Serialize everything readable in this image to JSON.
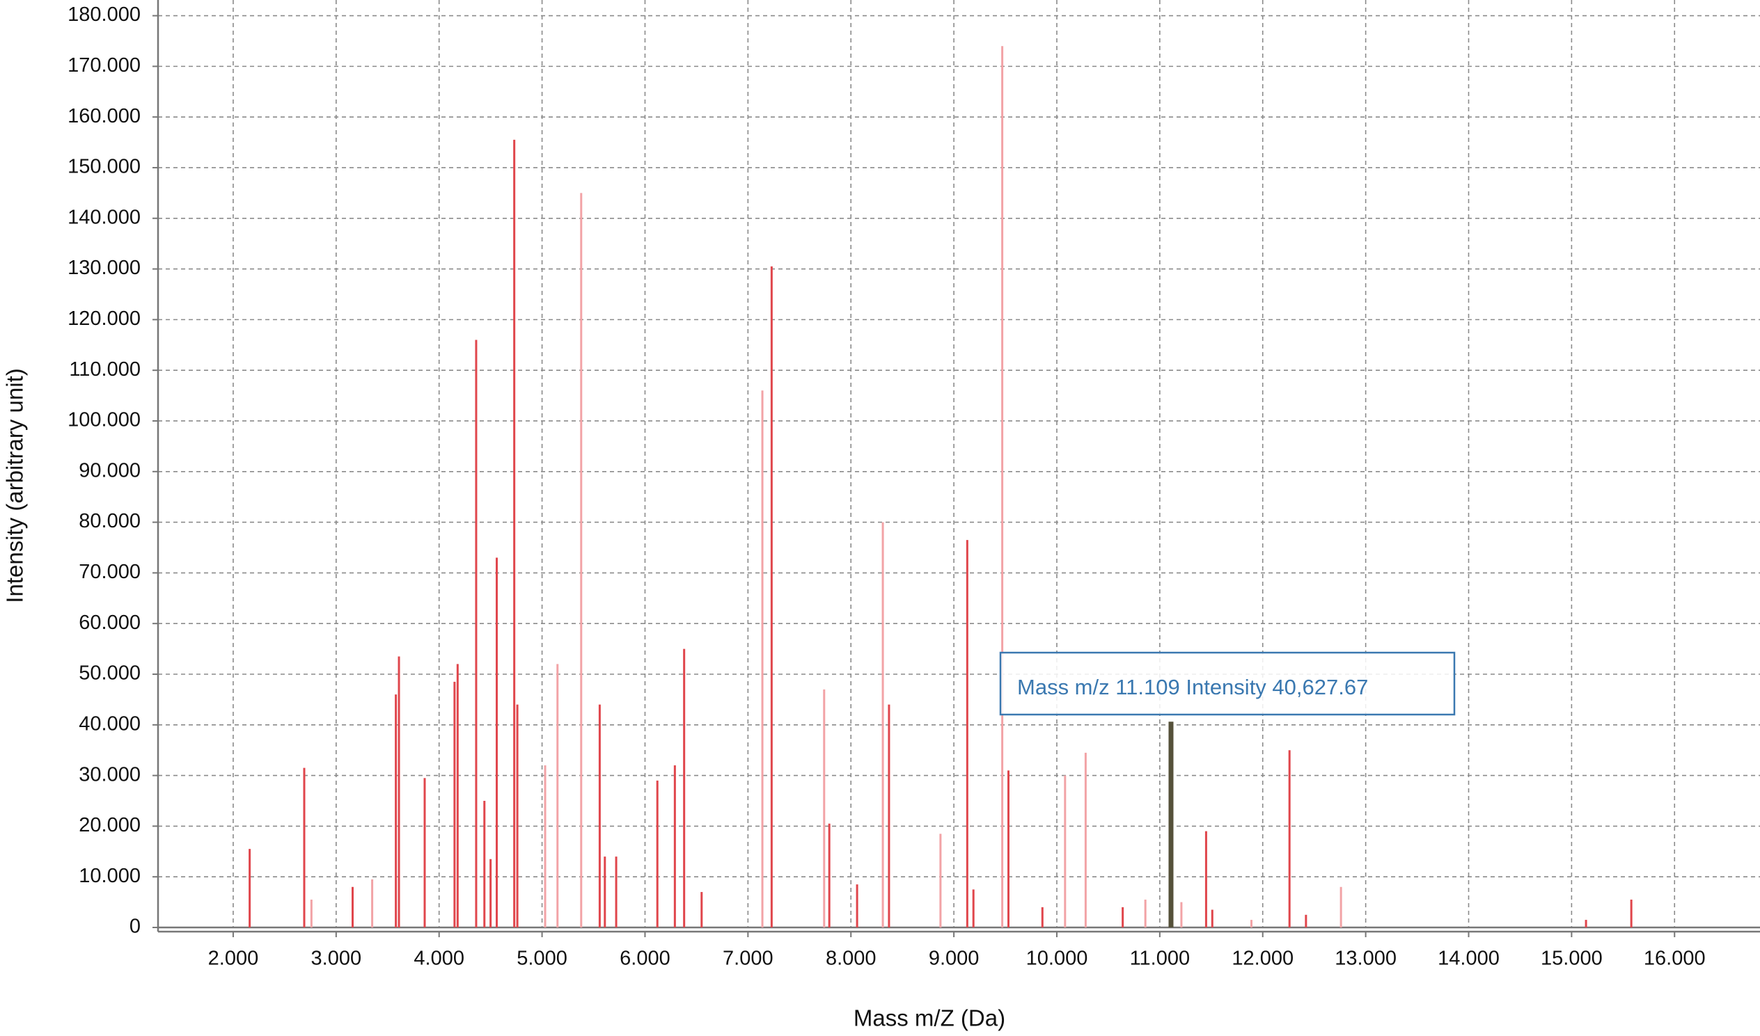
{
  "chart_data": {
    "type": "stem",
    "xlabel": "Mass m/Z (Da)",
    "ylabel": "Intensity (arbitrary unit)",
    "annotation": "Mass m/z 11.109 Intensity 40,627.67",
    "xlim": [
      1270,
      16830
    ],
    "ylim": [
      0,
      183100
    ],
    "grid": true,
    "xticks": [
      {
        "value": 2000,
        "label": "2.000"
      },
      {
        "value": 3000,
        "label": "3.000"
      },
      {
        "value": 4000,
        "label": "4.000"
      },
      {
        "value": 5000,
        "label": "5.000"
      },
      {
        "value": 6000,
        "label": "6.000"
      },
      {
        "value": 7000,
        "label": "7.000"
      },
      {
        "value": 8000,
        "label": "8.000"
      },
      {
        "value": 9000,
        "label": "9.000"
      },
      {
        "value": 10000,
        "label": "10.000"
      },
      {
        "value": 11000,
        "label": "11.000"
      },
      {
        "value": 12000,
        "label": "12.000"
      },
      {
        "value": 13000,
        "label": "13.000"
      },
      {
        "value": 14000,
        "label": "14.000"
      },
      {
        "value": 15000,
        "label": "15.000"
      },
      {
        "value": 16000,
        "label": "16.000"
      }
    ],
    "yticks": [
      0,
      {
        "value": 10000,
        "label": "10.000"
      },
      {
        "value": 20000,
        "label": "20.000"
      },
      {
        "value": 30000,
        "label": "30.000"
      },
      {
        "value": 40000,
        "label": "40.000"
      },
      {
        "value": 50000,
        "label": "50.000"
      },
      {
        "value": 60000,
        "label": "60.000"
      },
      {
        "value": 70000,
        "label": "70.000"
      },
      {
        "value": 80000,
        "label": "80.000"
      },
      {
        "value": 90000,
        "label": "90.000"
      },
      {
        "value": 100000,
        "label": "100.000"
      },
      {
        "value": 110000,
        "label": "110.000"
      },
      {
        "value": 120000,
        "label": "120.000"
      },
      {
        "value": 130000,
        "label": "130.000"
      },
      {
        "value": 140000,
        "label": "140.000"
      },
      {
        "value": 150000,
        "label": "150.000"
      },
      {
        "value": 160000,
        "label": "160.000"
      },
      {
        "value": 170000,
        "label": "170.000"
      },
      {
        "value": 180000,
        "label": "180.000"
      }
    ],
    "series": [
      {
        "color": "#e0464c",
        "x": [
          2160,
          2690,
          3160,
          3580,
          3610,
          3860,
          4150,
          4180,
          4360,
          4440,
          4500,
          4560,
          4730,
          4760,
          5560,
          5610,
          5720,
          6120,
          6290,
          6380,
          6550,
          7230,
          7790,
          8060,
          8370,
          9130,
          9190,
          9530,
          9860,
          10640,
          11450,
          11510,
          12260,
          12420,
          15140,
          15580
        ],
        "values": [
          15500,
          31500,
          8000,
          46000,
          53500,
          29500,
          48500,
          52000,
          116000,
          25000,
          13500,
          73000,
          155500,
          44000,
          44000,
          14000,
          14000,
          29000,
          32000,
          55000,
          7000,
          130500,
          20500,
          8500,
          44000,
          76500,
          7500,
          31000,
          4000,
          4000,
          19000,
          3500,
          35000,
          2500,
          1500,
          5500
        ]
      },
      {
        "color": "#f2a3a6",
        "x": [
          2760,
          3350,
          5030,
          5150,
          5380,
          7140,
          7740,
          8310,
          8870,
          9470,
          10080,
          10280,
          10860,
          11210,
          11890,
          12760
        ],
        "values": [
          5500,
          9500,
          32000,
          52000,
          145000,
          106000,
          47000,
          80000,
          18500,
          174000,
          30000,
          34500,
          5500,
          5000,
          1500,
          8000
        ]
      },
      {
        "color": "#55513a",
        "x": [
          11109
        ],
        "values": [
          40627.67
        ]
      }
    ]
  }
}
